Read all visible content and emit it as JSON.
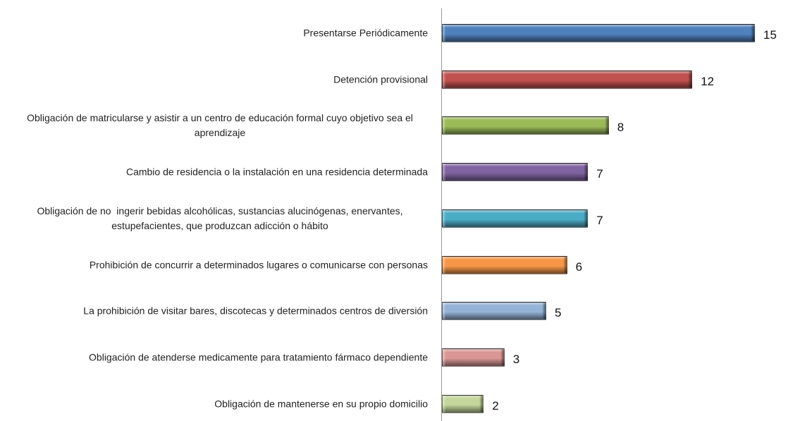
{
  "chart_data": {
    "type": "hbar",
    "categories": [
      "Presentarse Periódicamente",
      "Detención provisional",
      "Obligación de matricularse y asistir a un centro de educación formal cuyo objetivo sea el aprendizaje",
      "Cambio de residencia o la instalación en una residencia determinada",
      "Obligación de no  ingerir bebidas alcohólicas, sustancias alucinógenas, enervantes, estupefacientes, que produzcan adicción o hábito",
      "Prohibición de concurrir a determinados lugares o comunicarse con personas",
      "La prohibición de visitar bares, discotecas y determinados centros de diversión",
      "Obligación de atenderse medicamente para tratamiento fármaco dependiente",
      "Obligación de mantenerse en su propio domicilio"
    ],
    "values": [
      15,
      12,
      8,
      7,
      7,
      6,
      5,
      3,
      2
    ],
    "colors": [
      "#4f81bd",
      "#c0504d",
      "#9bbb59",
      "#8064a2",
      "#4bacc6",
      "#f79646",
      "#95b3d7",
      "#d99694",
      "#c3d69b"
    ]
  }
}
